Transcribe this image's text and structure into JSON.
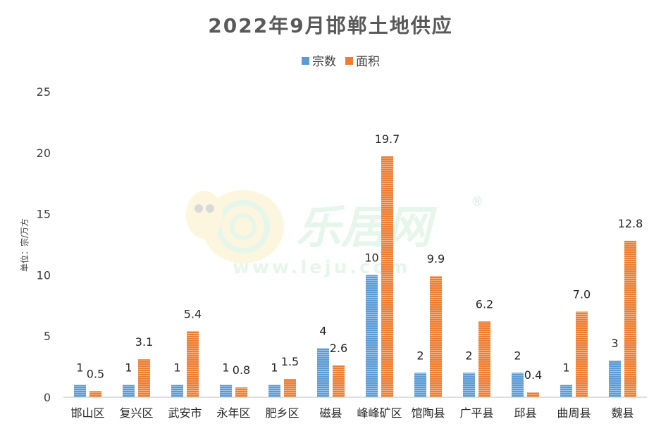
{
  "chart_data": {
    "type": "bar",
    "title": "2022年9月邯郸土地供应",
    "ylabel": "单位：宗/万方",
    "xlabel": "",
    "ylim": [
      0,
      25
    ],
    "yticks": [
      0,
      5,
      10,
      15,
      20,
      25
    ],
    "legend_position": "top-center",
    "grid": false,
    "categories": [
      "邯山区",
      "复兴区",
      "武安市",
      "永年区",
      "肥乡区",
      "磁县",
      "峰峰矿区",
      "馆陶县",
      "广平县",
      "邱县",
      "曲周县",
      "魏县"
    ],
    "series": [
      {
        "name": "宗数",
        "color": "#5b9bd5",
        "values": [
          1,
          1,
          1,
          1,
          1,
          4,
          10,
          2,
          2,
          2,
          1,
          3
        ],
        "labels": [
          "1",
          "1",
          "1",
          "1",
          "1",
          "4",
          "10",
          "2",
          "2",
          "2",
          "1",
          "3"
        ]
      },
      {
        "name": "面积",
        "color": "#ed7d31",
        "values": [
          0.5,
          3.1,
          5.4,
          0.8,
          1.5,
          2.6,
          19.7,
          9.9,
          6.2,
          0.4,
          7.0,
          12.8
        ],
        "labels": [
          "0.5",
          "3.1",
          "5.4",
          "0.8",
          "1.5",
          "2.6",
          "19.7",
          "9.9",
          "6.2",
          "0.4",
          "7.0",
          "12.8"
        ]
      }
    ]
  },
  "watermark": {
    "brand": "乐居网",
    "registered": "®",
    "url": "www.leju.com"
  }
}
